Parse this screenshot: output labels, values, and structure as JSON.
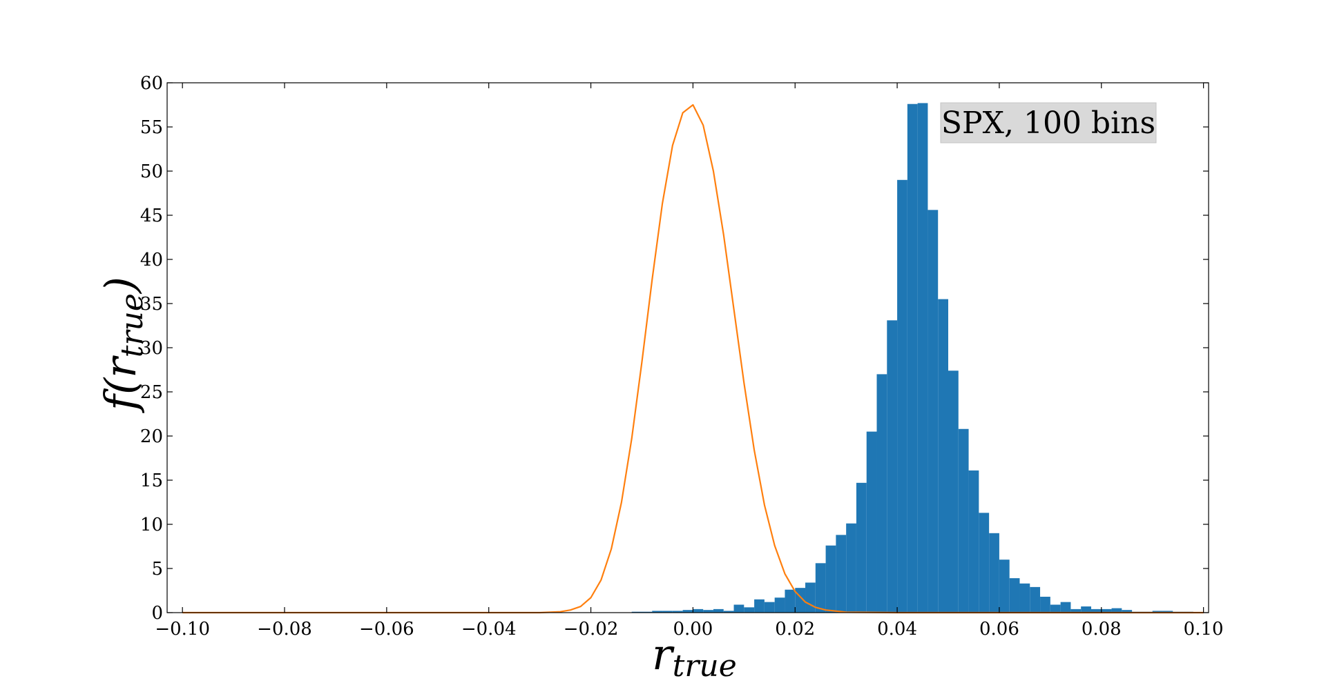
{
  "chart_data": {
    "type": "bar",
    "title": "",
    "legend_text": "SPX, 100 bins",
    "legend_position": "top-right",
    "xlabel": "r_true",
    "xlabel_main": "r",
    "xlabel_sub": "true",
    "ylabel_f": "f(",
    "ylabel_r": "r",
    "ylabel_sub": "true",
    "ylabel_close": ")",
    "xlim": [
      -0.103,
      0.101
    ],
    "ylim": [
      0,
      60
    ],
    "grid": false,
    "xticks": [
      -0.1,
      -0.08,
      -0.06,
      -0.04,
      -0.02,
      0.0,
      0.02,
      0.04,
      0.06,
      0.08,
      0.1
    ],
    "xtick_labels": [
      "−0.10",
      "−0.08",
      "−0.06",
      "−0.04",
      "−0.02",
      "0.00",
      "0.02",
      "0.04",
      "0.06",
      "0.08",
      "0.10"
    ],
    "yticks": [
      0,
      5,
      10,
      15,
      20,
      25,
      30,
      35,
      40,
      45,
      50,
      55,
      60
    ],
    "ytick_labels": [
      "0",
      "5",
      "10",
      "15",
      "20",
      "25",
      "30",
      "35",
      "40",
      "45",
      "50",
      "55",
      "60"
    ],
    "histogram": {
      "bin_start": -0.1,
      "bin_width": 0.002,
      "color": "#1f77b4",
      "values": [
        0,
        0,
        0,
        0,
        0,
        0,
        0,
        0,
        0,
        0,
        0,
        0,
        0,
        0,
        0,
        0,
        0,
        0,
        0,
        0,
        0,
        0,
        0,
        0,
        0,
        0,
        0,
        0,
        0,
        0,
        0,
        0,
        0,
        0,
        0,
        0,
        0,
        0,
        0,
        0,
        0,
        0,
        0,
        0,
        0.1,
        0.1,
        0.2,
        0.2,
        0.2,
        0.3,
        0.4,
        0.3,
        0.4,
        0.2,
        0.9,
        0.6,
        1.5,
        1.2,
        1.7,
        2.6,
        2.8,
        3.4,
        5.6,
        7.6,
        8.8,
        10.1,
        14.7,
        20.5,
        27.0,
        33.1,
        49.0,
        57.6,
        57.7,
        45.6,
        35.5,
        27.4,
        20.8,
        16.1,
        11.3,
        9.0,
        6.0,
        3.9,
        3.3,
        2.9,
        1.8,
        0.9,
        1.2,
        0.4,
        0.7,
        0.4,
        0.4,
        0.5,
        0.3,
        0.1,
        0.1,
        0.2,
        0.2,
        0.1,
        0.1,
        0
      ]
    },
    "series": [
      {
        "type": "line",
        "color": "#ff7f0e",
        "x": [
          -0.1,
          -0.09,
          -0.08,
          -0.07,
          -0.06,
          -0.05,
          -0.04,
          -0.03,
          -0.026,
          -0.024,
          -0.022,
          -0.02,
          -0.018,
          -0.016,
          -0.014,
          -0.012,
          -0.01,
          -0.008,
          -0.006,
          -0.004,
          -0.002,
          0.0,
          0.002,
          0.004,
          0.006,
          0.008,
          0.01,
          0.012,
          0.014,
          0.016,
          0.018,
          0.02,
          0.022,
          0.024,
          0.026,
          0.03,
          0.04,
          0.05,
          0.06,
          0.07,
          0.08,
          0.09,
          0.1
        ],
        "y": [
          0,
          0,
          0,
          0,
          0,
          0,
          0,
          0,
          0.1,
          0.3,
          0.7,
          1.7,
          3.7,
          7.2,
          12.5,
          19.7,
          28.4,
          37.7,
          46.3,
          52.9,
          56.6,
          57.5,
          55.2,
          50.0,
          42.8,
          34.4,
          26.0,
          18.4,
          12.2,
          7.6,
          4.4,
          2.4,
          1.2,
          0.6,
          0.3,
          0.05,
          0,
          0,
          0,
          0,
          0,
          0,
          0
        ]
      }
    ]
  }
}
